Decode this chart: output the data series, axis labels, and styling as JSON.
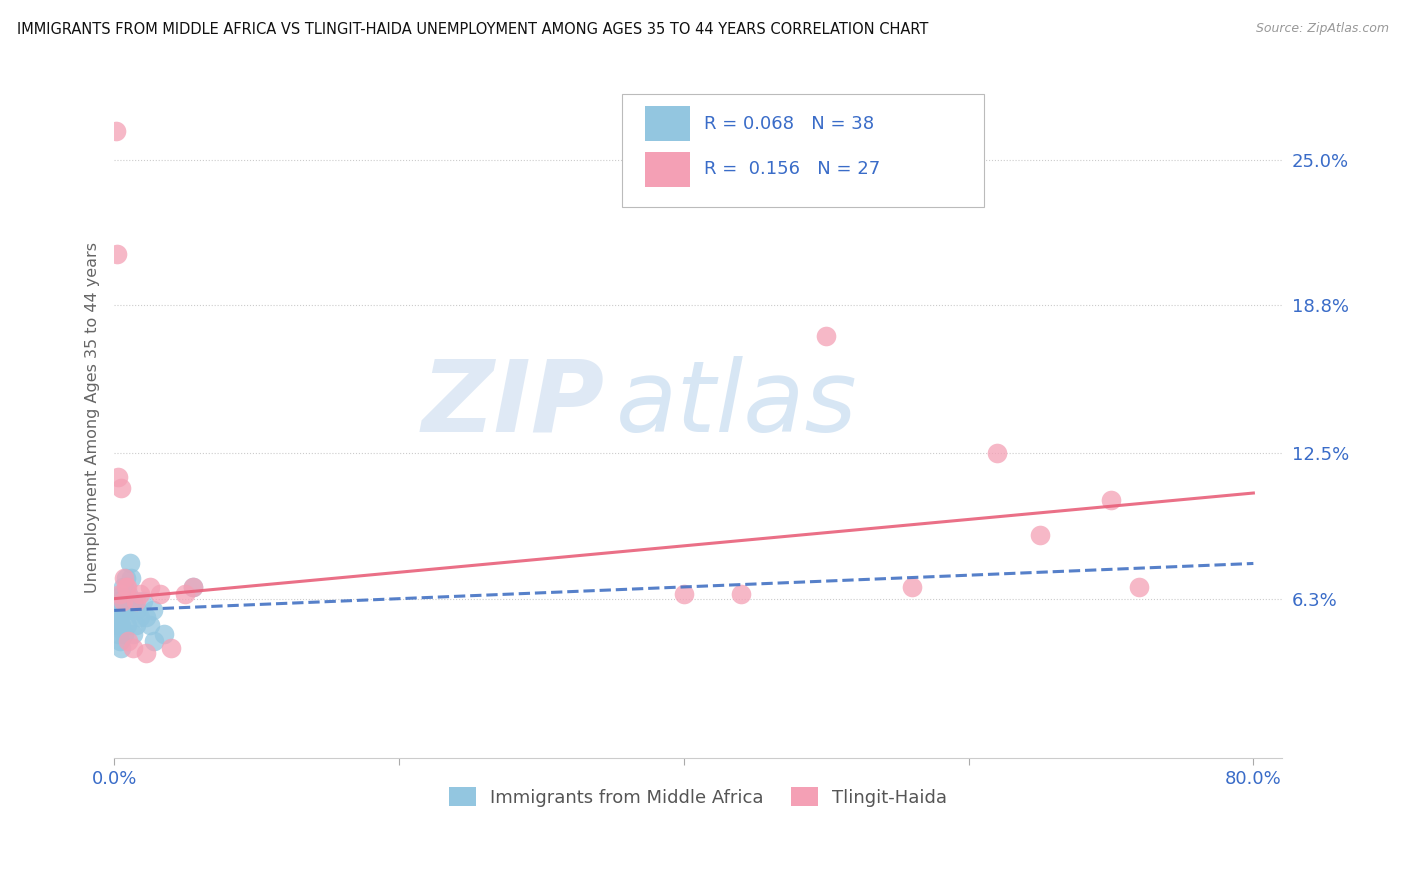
{
  "title": "IMMIGRANTS FROM MIDDLE AFRICA VS TLINGIT-HAIDA UNEMPLOYMENT AMONG AGES 35 TO 44 YEARS CORRELATION CHART",
  "source": "Source: ZipAtlas.com",
  "ylabel": "Unemployment Among Ages 35 to 44 years",
  "xlim": [
    0.0,
    0.82
  ],
  "ylim": [
    -0.005,
    0.285
  ],
  "xticks": [
    0.0,
    0.2,
    0.4,
    0.6,
    0.8
  ],
  "xticklabels": [
    "0.0%",
    "",
    "",
    "",
    "80.0%"
  ],
  "ytick_positions": [
    0.063,
    0.125,
    0.188,
    0.25
  ],
  "ytick_labels": [
    "6.3%",
    "12.5%",
    "18.8%",
    "25.0%"
  ],
  "legend_R1": "0.068",
  "legend_N1": "38",
  "legend_R2": "0.156",
  "legend_N2": "27",
  "series1_label": "Immigrants from Middle Africa",
  "series2_label": "Tlingit-Haida",
  "color1": "#93C6E0",
  "color2": "#F4A0B5",
  "trendline1_color": "#4472C4",
  "trendline2_color": "#E8607A",
  "watermark_zip": "ZIP",
  "watermark_atlas": "atlas",
  "background_color": "#FFFFFF",
  "scatter1_x": [
    0.001,
    0.002,
    0.002,
    0.003,
    0.003,
    0.003,
    0.004,
    0.004,
    0.004,
    0.004,
    0.005,
    0.005,
    0.005,
    0.006,
    0.006,
    0.007,
    0.007,
    0.007,
    0.008,
    0.008,
    0.009,
    0.009,
    0.01,
    0.01,
    0.011,
    0.012,
    0.013,
    0.013,
    0.015,
    0.016,
    0.018,
    0.02,
    0.022,
    0.025,
    0.027,
    0.028,
    0.035,
    0.055
  ],
  "scatter1_y": [
    0.058,
    0.052,
    0.057,
    0.048,
    0.055,
    0.062,
    0.045,
    0.052,
    0.058,
    0.064,
    0.042,
    0.052,
    0.058,
    0.062,
    0.068,
    0.048,
    0.058,
    0.062,
    0.065,
    0.072,
    0.052,
    0.062,
    0.058,
    0.065,
    0.078,
    0.072,
    0.062,
    0.048,
    0.052,
    0.058,
    0.055,
    0.062,
    0.055,
    0.052,
    0.058,
    0.045,
    0.048,
    0.068
  ],
  "scatter2_x": [
    0.001,
    0.002,
    0.003,
    0.004,
    0.005,
    0.006,
    0.007,
    0.008,
    0.009,
    0.01,
    0.013,
    0.015,
    0.018,
    0.022,
    0.025,
    0.032,
    0.04,
    0.05,
    0.055,
    0.4,
    0.44,
    0.5,
    0.56,
    0.62,
    0.65,
    0.7,
    0.72
  ],
  "scatter2_y": [
    0.262,
    0.21,
    0.115,
    0.065,
    0.11,
    0.062,
    0.072,
    0.068,
    0.068,
    0.045,
    0.042,
    0.062,
    0.065,
    0.04,
    0.068,
    0.065,
    0.042,
    0.065,
    0.068,
    0.065,
    0.065,
    0.175,
    0.068,
    0.125,
    0.09,
    0.105,
    0.068
  ],
  "trend1_x0": 0.0,
  "trend1_x1": 0.8,
  "trend1_y0": 0.058,
  "trend1_y1": 0.078,
  "trend2_x0": 0.0,
  "trend2_x1": 0.8,
  "trend2_y0": 0.063,
  "trend2_y1": 0.108
}
